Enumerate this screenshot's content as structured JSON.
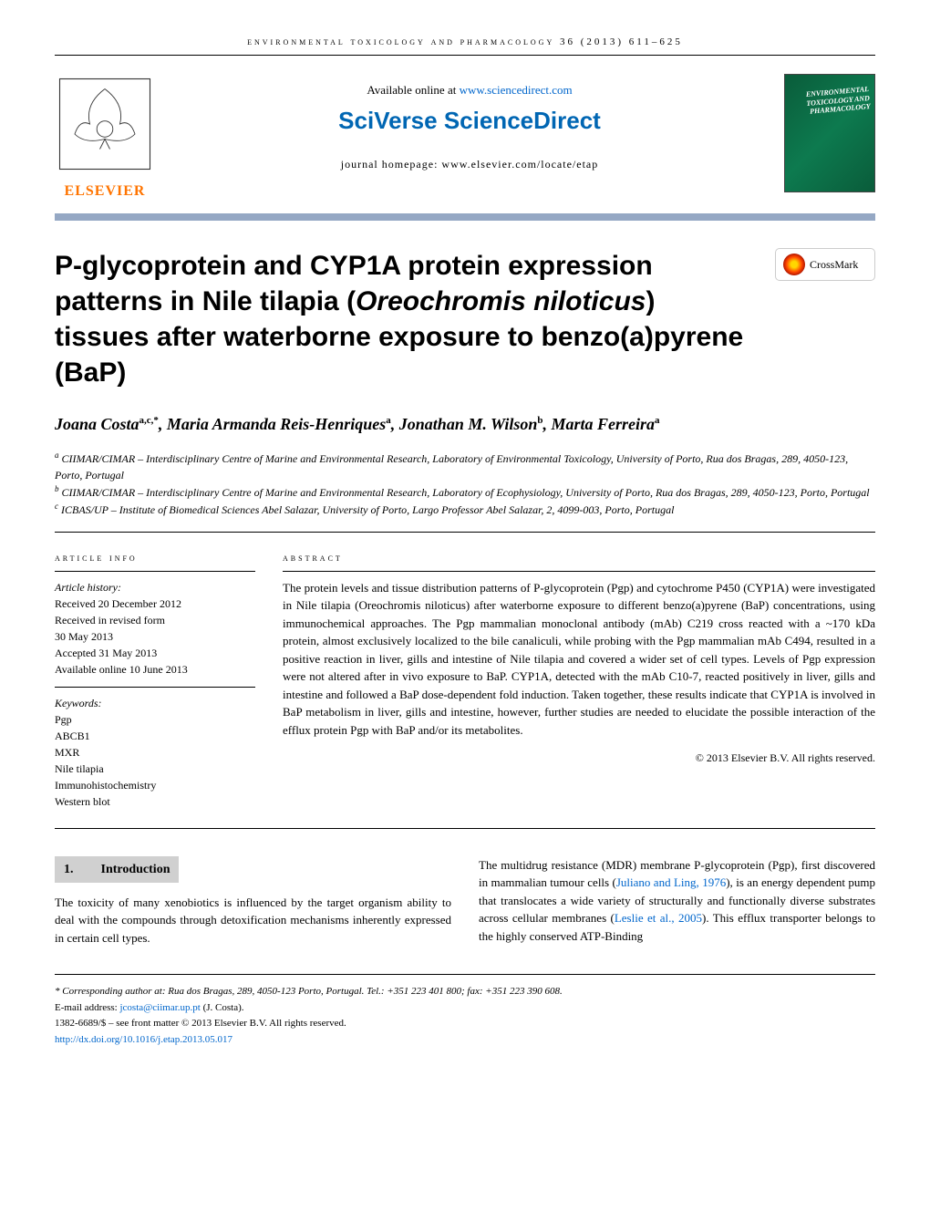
{
  "journal_header": "environmental toxicology and pharmacology 36 (2013) 611–625",
  "header": {
    "available_text": "Available online at ",
    "available_link": "www.sciencedirect.com",
    "sciverse": "SciVerse ScienceDirect",
    "homepage_label": "journal homepage: www.elsevier.com/locate/etap",
    "elsevier": "ELSEVIER",
    "cover_text": "ENVIRONMENTAL TOXICOLOGY AND PHARMACOLOGY"
  },
  "crossmark_label": "CrossMark",
  "title_parts": {
    "line1": "P-glycoprotein and CYP1A protein expression patterns in Nile tilapia (",
    "italic": "Oreochromis niloticus",
    "line2": ") tissues after waterborne exposure to benzo(a)pyrene (BaP)"
  },
  "authors_html": "Joana Costa<sup>a,c,*</sup>, Maria Armanda Reis-Henriques<sup>a</sup>, Jonathan M. Wilson<sup>b</sup>, Marta Ferreira<sup>a</sup>",
  "affiliations": [
    "<sup>a</sup> CIIMAR/CIMAR – Interdisciplinary Centre of Marine and Environmental Research, Laboratory of Environmental Toxicology, University of Porto, Rua dos Bragas, 289, 4050-123, Porto, Portugal",
    "<sup>b</sup> CIIMAR/CIMAR – Interdisciplinary Centre of Marine and Environmental Research, Laboratory of Ecophysiology, University of Porto, Rua dos Bragas, 289, 4050-123, Porto, Portugal",
    "<sup>c</sup> ICBAS/UP – Institute of Biomedical Sciences Abel Salazar, University of Porto, Largo Professor Abel Salazar, 2, 4099-003, Porto, Portugal"
  ],
  "article_info": {
    "heading": "article info",
    "history_label": "Article history:",
    "history": [
      "Received 20 December 2012",
      "Received in revised form",
      "30 May 2013",
      "Accepted 31 May 2013",
      "Available online 10 June 2013"
    ],
    "keywords_label": "Keywords:",
    "keywords": [
      "Pgp",
      "ABCB1",
      "MXR",
      "Nile tilapia",
      "Immunohistochemistry",
      "Western blot"
    ]
  },
  "abstract": {
    "heading": "abstract",
    "text": "The protein levels and tissue distribution patterns of P-glycoprotein (Pgp) and cytochrome P450 (CYP1A) were investigated in Nile tilapia (Oreochromis niloticus) after waterborne exposure to different benzo(a)pyrene (BaP) concentrations, using immunochemical approaches. The Pgp mammalian monoclonal antibody (mAb) C219 cross reacted with a ~170 kDa protein, almost exclusively localized to the bile canaliculi, while probing with the Pgp mammalian mAb C494, resulted in a positive reaction in liver, gills and intestine of Nile tilapia and covered a wider set of cell types. Levels of Pgp expression were not altered after in vivo exposure to BaP. CYP1A, detected with the mAb C10-7, reacted positively in liver, gills and intestine and followed a BaP dose-dependent fold induction. Taken together, these results indicate that CYP1A is involved in BaP metabolism in liver, gills and intestine, however, further studies are needed to elucidate the possible interaction of the efflux protein Pgp with BaP and/or its metabolites.",
    "copyright": "© 2013 Elsevier B.V. All rights reserved."
  },
  "intro": {
    "section_num": "1.",
    "section_title": "Introduction",
    "col1": "The toxicity of many xenobiotics is influenced by the target organism ability to deal with the compounds through detoxification mechanisms inherently expressed in certain cell types.",
    "col2_p1": "The multidrug resistance (MDR) membrane P-glycoprotein (Pgp), first discovered in mammalian tumour cells (",
    "col2_ref1": "Juliano and Ling, 1976",
    "col2_p2": "), is an energy dependent pump that translocates a wide variety of structurally and functionally diverse substrates across cellular membranes (",
    "col2_ref2": "Leslie et al., 2005",
    "col2_p3": "). This efflux transporter belongs to the highly conserved ATP-Binding"
  },
  "footer": {
    "corresponding": "* Corresponding author at: Rua dos Bragas, 289, 4050-123 Porto, Portugal. Tel.: +351 223 401 800; fax: +351 223 390 608.",
    "email_label": "E-mail address: ",
    "email": "jcosta@ciimar.up.pt",
    "email_suffix": " (J. Costa).",
    "issn": "1382-6689/$ – see front matter © 2013 Elsevier B.V. All rights reserved.",
    "doi": "http://dx.doi.org/10.1016/j.etap.2013.05.017"
  },
  "colors": {
    "header_border": "#95a8c4",
    "elsevier_orange": "#ff7400",
    "sciverse_blue": "#0066b3",
    "link_blue": "#0066cc",
    "section_bg": "#d0d0d0",
    "cover_green": "#0d7a4f"
  }
}
